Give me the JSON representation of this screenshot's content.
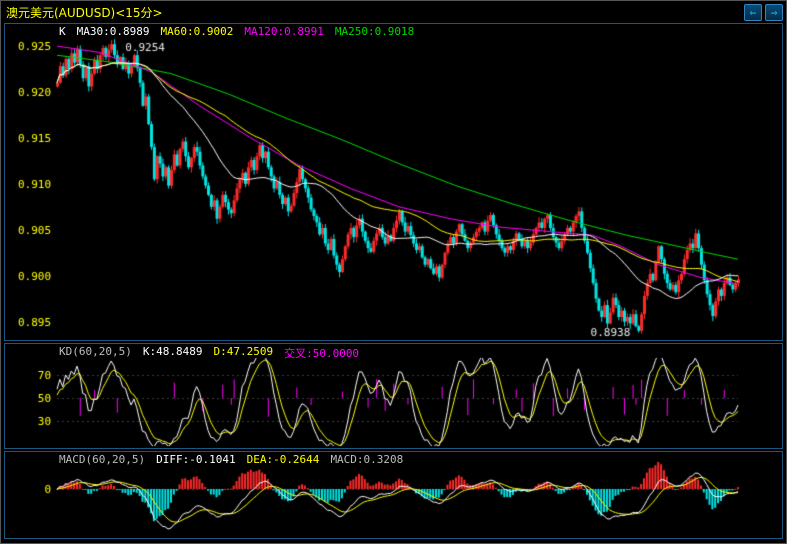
{
  "window": {
    "title": "澳元美元(AUDUSD)<15分>",
    "nav_left_glyph": "⇐",
    "nav_right_glyph": "⇒"
  },
  "colors": {
    "background": "#000000",
    "panel_border": "#1b577f",
    "title_text": "#ffff00",
    "axis_text": "#ffff00",
    "annotation_text": "#e8e8e8",
    "up": "#ff2a2a",
    "down": "#00e5e5",
    "ma30": "#ffffff",
    "ma60": "#ffff00",
    "ma120": "#ff00ff",
    "ma250": "#00d800",
    "k_line": "#ffffff",
    "d_line": "#ffff00",
    "cross": "#ff00ff",
    "diff_line": "#ffffff",
    "dea_line": "#ffff00",
    "macd_label": "#bdbdbd",
    "hist_pos": "#ff2a2a",
    "hist_neg": "#00e5e5",
    "grid_dotted": "#3a3a3a",
    "header_gray": "#bdbdbd",
    "nav_glyph": "#00d8ff"
  },
  "chart_data": {
    "type": "candlestick+oscillators",
    "symbol": "澳元美元(AUDUSD)",
    "interval": "15分",
    "main": {
      "header": {
        "k_label": "K",
        "ma30": "MA30:0.8989",
        "ma60": "MA60:0.9002",
        "ma120": "MA120:0.8991",
        "ma250": "MA250:0.9018"
      },
      "y_ticks": [
        "0.925",
        "0.920",
        "0.915",
        "0.910",
        "0.905",
        "0.900",
        "0.895"
      ],
      "ylim": [
        0.893,
        0.9274
      ],
      "annotations": [
        {
          "text": "0.9254",
          "index": 19,
          "price": 0.9254,
          "align": "right"
        },
        {
          "text": "0.8938",
          "index": 204,
          "price": 0.8938,
          "align": "left"
        }
      ],
      "closes": [
        0.921,
        0.9228,
        0.9218,
        0.9236,
        0.9225,
        0.9242,
        0.9232,
        0.9247,
        0.923,
        0.9215,
        0.9228,
        0.9206,
        0.922,
        0.9235,
        0.9225,
        0.924,
        0.9248,
        0.9238,
        0.9246,
        0.9252,
        0.924,
        0.923,
        0.9238,
        0.9225,
        0.9232,
        0.922,
        0.9228,
        0.924,
        0.9226,
        0.921,
        0.9185,
        0.9195,
        0.9165,
        0.914,
        0.9105,
        0.913,
        0.9122,
        0.9108,
        0.9118,
        0.9098,
        0.9115,
        0.9132,
        0.912,
        0.9138,
        0.9146,
        0.913,
        0.9118,
        0.9128,
        0.914,
        0.9135,
        0.912,
        0.9108,
        0.9098,
        0.9088,
        0.9075,
        0.9082,
        0.9062,
        0.9075,
        0.9088,
        0.908,
        0.9072,
        0.9068,
        0.9082,
        0.9095,
        0.9105,
        0.9112,
        0.91,
        0.9118,
        0.9126,
        0.9115,
        0.913,
        0.9142,
        0.9128,
        0.9135,
        0.9118,
        0.9108,
        0.9095,
        0.9102,
        0.9088,
        0.9078,
        0.9085,
        0.907,
        0.9076,
        0.909,
        0.9102,
        0.9116,
        0.9105,
        0.9095,
        0.9085,
        0.9072,
        0.9065,
        0.9058,
        0.9045,
        0.9052,
        0.9035,
        0.9028,
        0.904,
        0.9022,
        0.9012,
        0.9004,
        0.9018,
        0.9032,
        0.9045,
        0.9052,
        0.9042,
        0.9055,
        0.9062,
        0.9048,
        0.9038,
        0.903,
        0.9026,
        0.9038,
        0.9046,
        0.9052,
        0.9042,
        0.9035,
        0.9044,
        0.9038,
        0.9052,
        0.906,
        0.907,
        0.9058,
        0.9048,
        0.9054,
        0.9044,
        0.9035,
        0.9028,
        0.9032,
        0.902,
        0.9012,
        0.9018,
        0.9008,
        0.9002,
        0.901,
        0.8998,
        0.9012,
        0.9025,
        0.9035,
        0.9042,
        0.9035,
        0.9048,
        0.9056,
        0.9045,
        0.9038,
        0.903,
        0.9036,
        0.9042,
        0.9048,
        0.9052,
        0.9058,
        0.9048,
        0.906,
        0.9066,
        0.9055,
        0.9045,
        0.9038,
        0.903,
        0.9025,
        0.9032,
        0.9028,
        0.9038,
        0.9046,
        0.904,
        0.9032,
        0.9038,
        0.903,
        0.9036,
        0.9045,
        0.9052,
        0.9058,
        0.9052,
        0.9062,
        0.9066,
        0.9052,
        0.9042,
        0.9036,
        0.903,
        0.9038,
        0.9045,
        0.9052,
        0.9048,
        0.9058,
        0.9065,
        0.907,
        0.9052,
        0.9038,
        0.9025,
        0.9008,
        0.8992,
        0.8975,
        0.8962,
        0.8955,
        0.8968,
        0.8948,
        0.896,
        0.8976,
        0.8968,
        0.8955,
        0.8962,
        0.895,
        0.8955,
        0.8948,
        0.8958,
        0.8945,
        0.894,
        0.8958,
        0.8978,
        0.8992,
        0.9002,
        0.8995,
        0.9015,
        0.9032,
        0.9018,
        0.9002,
        0.8992,
        0.8985,
        0.899,
        0.8982,
        0.8995,
        0.9002,
        0.9018,
        0.9028,
        0.9035,
        0.903,
        0.9046,
        0.903,
        0.9012,
        0.8995,
        0.898,
        0.8968,
        0.8956,
        0.8972,
        0.8985,
        0.8978,
        0.8992,
        0.8998,
        0.899,
        0.8985,
        0.8992,
        0.8996
      ],
      "ma": {
        "ma30": {
          "label": "MA30",
          "period": 30,
          "last": 0.8989
        },
        "ma60": {
          "label": "MA60",
          "period": 60,
          "last": 0.9002
        },
        "ma120": {
          "label": "MA120",
          "last": 0.8991,
          "points": [
            [
              0,
              0.925
            ],
            [
              15,
              0.9243
            ],
            [
              33,
              0.9222
            ],
            [
              50,
              0.9185
            ],
            [
              68,
              0.915
            ],
            [
              85,
              0.912
            ],
            [
              103,
              0.9095
            ],
            [
              120,
              0.9075
            ],
            [
              138,
              0.9062
            ],
            [
              155,
              0.9053
            ],
            [
              173,
              0.9048
            ],
            [
              188,
              0.9044
            ],
            [
              198,
              0.9032
            ],
            [
              211,
              0.9012
            ],
            [
              226,
              0.8998
            ],
            [
              239,
              0.8991
            ]
          ]
        },
        "ma250": {
          "label": "MA250",
          "last": 0.9018,
          "points": [
            [
              0,
              0.924
            ],
            [
              20,
              0.9232
            ],
            [
              40,
              0.922
            ],
            [
              60,
              0.9198
            ],
            [
              80,
              0.9172
            ],
            [
              100,
              0.9148
            ],
            [
              120,
              0.9122
            ],
            [
              140,
              0.9098
            ],
            [
              160,
              0.9078
            ],
            [
              180,
              0.906
            ],
            [
              200,
              0.9044
            ],
            [
              215,
              0.9034
            ],
            [
              228,
              0.9025
            ],
            [
              239,
              0.9018
            ]
          ]
        }
      }
    },
    "kd": {
      "header": {
        "name": "KD(60,20,5)",
        "k": "K:48.8489",
        "d": "D:47.2509",
        "cross": "交叉:50.0000"
      },
      "y_ticks": [
        "70",
        "50",
        "30"
      ],
      "k_last": 48.8489,
      "d_last": 47.2509,
      "cross_level": 50.0
    },
    "macd": {
      "header": {
        "name": "MACD(60,20,5)",
        "diff": "DIFF:-0.1041",
        "dea": "DEA:-0.2644",
        "macd": "MACD:0.3208"
      },
      "y_ticks": [
        "0"
      ],
      "diff_last": -0.1041,
      "dea_last": -0.2644,
      "macd_last": 0.3208
    }
  }
}
